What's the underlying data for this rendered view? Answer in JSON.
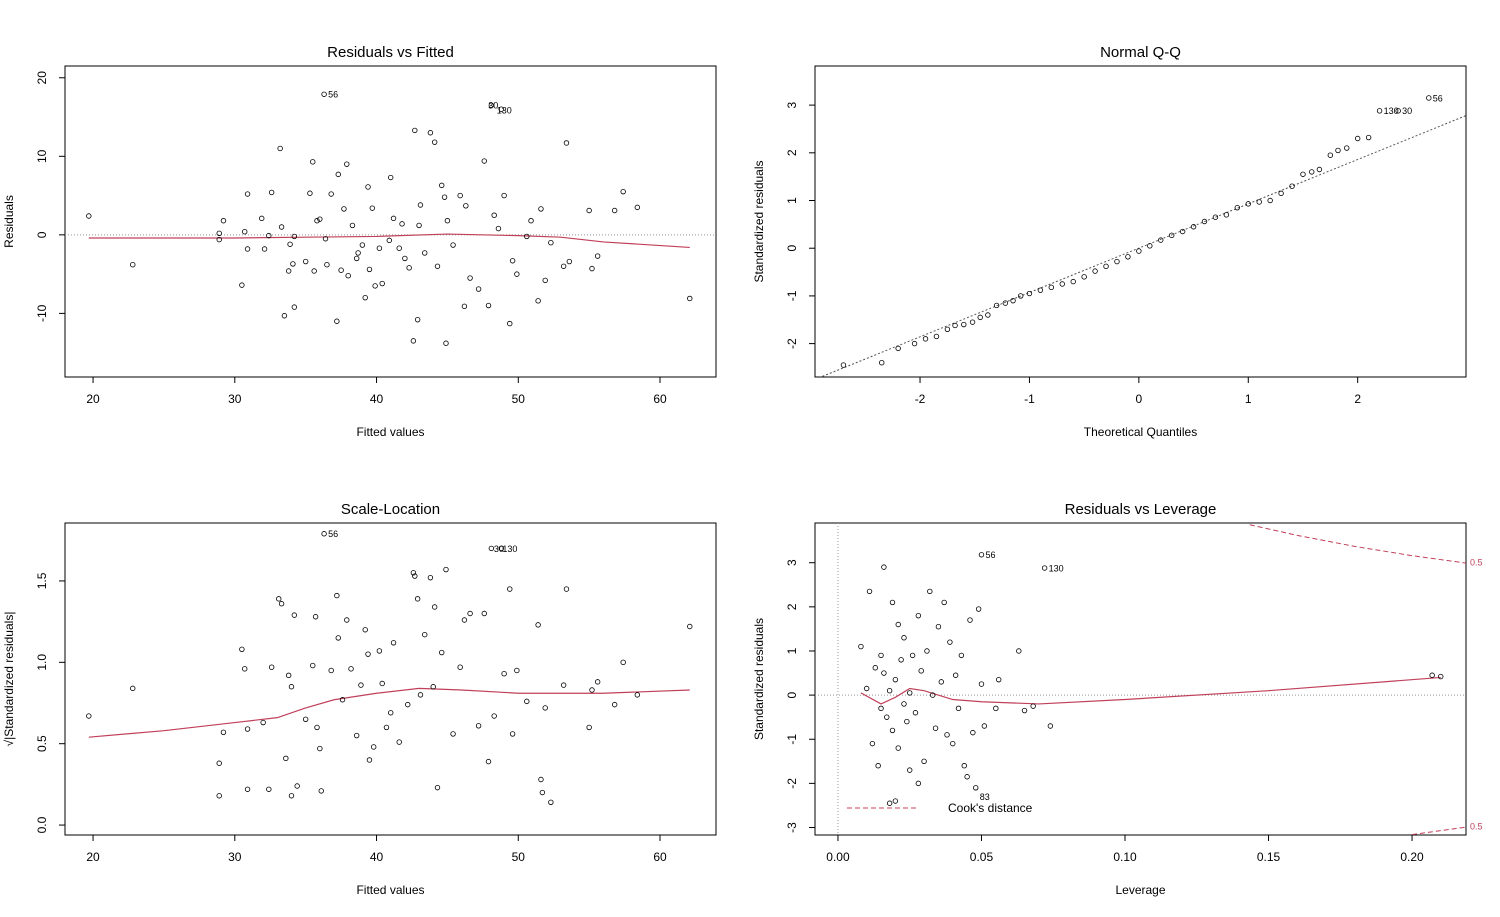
{
  "chart_data": [
    {
      "type": "scatter",
      "title": "Residuals vs Fitted",
      "xlabel": "Fitted values",
      "ylabel": "Residuals",
      "xlim": [
        18.02,
        63.95
      ],
      "ylim": [
        -18.1,
        21.5
      ],
      "xticks": [
        20,
        30,
        40,
        50,
        60
      ],
      "yticks": [
        -10,
        0,
        10,
        20
      ],
      "hline": 0,
      "x": [
        19.7,
        22.8,
        28.9,
        28.9,
        29.2,
        30.5,
        30.7,
        30.9,
        30.9,
        31.9,
        32.1,
        32.4,
        32.6,
        33.2,
        33.3,
        33.5,
        33.8,
        33.9,
        34.1,
        34.2,
        34.2,
        35,
        35.3,
        35.5,
        35.6,
        35.8,
        36.0,
        36.3,
        36.4,
        36.8,
        37.2,
        37.3,
        37.5,
        37.7,
        37.9,
        38.0,
        38.3,
        38.7,
        39.0,
        39.2,
        39.4,
        39.5,
        39.7,
        39.9,
        40.2,
        40.4,
        41,
        41.2,
        41.6,
        42,
        42.3,
        42.6,
        42.7,
        42.9,
        43.1,
        43.4,
        43.8,
        44.1,
        44.3,
        44.6,
        44.9,
        45.4,
        45.9,
        46.2,
        46.6,
        47.2,
        47.6,
        47.9,
        48.1,
        48.3,
        48.8,
        49.0,
        49.4,
        49.6,
        49.9,
        50.6,
        50.9,
        51.4,
        51.6,
        51.9,
        52.3,
        53.2,
        53.4,
        53.6,
        55,
        55.2,
        55.6,
        56.8,
        57.4,
        58.4,
        62.1,
        43,
        40.9,
        46.3,
        44.8,
        38.6,
        48.6,
        45,
        36.5,
        41.8
      ],
      "y": [
        2.4,
        -3.8,
        0.2,
        -0.6,
        1.8,
        -6.4,
        0.4,
        5.2,
        -1.8,
        2.1,
        -1.8,
        -0.1,
        5.4,
        11,
        1,
        -10.3,
        -4.6,
        -1.2,
        -3.7,
        -9.2,
        -0.2,
        -3.4,
        5.3,
        9.3,
        -4.6,
        1.8,
        2,
        17.9,
        -0.5,
        5.2,
        -11,
        7.7,
        -4.5,
        3.3,
        9,
        -5.2,
        1.2,
        -2.3,
        -1.3,
        -8,
        6.1,
        -4.4,
        3.4,
        -6.5,
        -1.7,
        -6.2,
        7.3,
        2.1,
        -1.7,
        -3,
        -4.2,
        -13.5,
        13.3,
        -10.8,
        3.8,
        -2.3,
        13,
        11.8,
        -4,
        6.3,
        -13.8,
        -1.3,
        5,
        -9.1,
        -5.5,
        -6.9,
        9.4,
        -9,
        16.5,
        2.5,
        16,
        5,
        -11.3,
        -3.3,
        -5,
        -0.2,
        1.8,
        -8.4,
        3.3,
        -5.8,
        -1,
        -4,
        11.7,
        -3.4,
        3.1,
        -4.3,
        -2.7,
        3.1,
        5.5,
        3.5,
        -8.1,
        1.2,
        -0.7,
        3.7,
        4.8,
        -3,
        0.8,
        1.8,
        -3.8,
        1.4
      ],
      "smooth": {
        "color": "#c0405a",
        "x": [
          19.7,
          30,
          35,
          40,
          45,
          50,
          53,
          56,
          62.1
        ],
        "y": [
          -0.4,
          -0.4,
          -0.3,
          -0.2,
          0.1,
          -0.1,
          -0.3,
          -0.9,
          -1.6
        ]
      },
      "annotations": [
        {
          "label": "56",
          "x": 36.3,
          "y": 17.9
        },
        {
          "label": "30",
          "x": 47.6,
          "y": 16.5
        },
        {
          "label": "130",
          "x": 48.2,
          "y": 15.9
        }
      ]
    },
    {
      "type": "scatter",
      "title": "Normal Q-Q",
      "xlabel": "Theoretical Quantiles",
      "ylabel": "Standardized residuals",
      "xlim": [
        -2.96,
        2.99
      ],
      "ylim": [
        -2.7,
        3.82
      ],
      "xticks": [
        -2,
        -1,
        0,
        1,
        2
      ],
      "yticks": [
        -2,
        -1,
        0,
        1,
        2,
        3
      ],
      "x": [
        -2.7,
        -2.35,
        -2.2,
        -2.05,
        -1.95,
        -1.85,
        -1.75,
        -1.68,
        -1.6,
        -1.52,
        -1.45,
        -1.38,
        -1.3,
        -1.22,
        -1.15,
        -1.08,
        -1.0,
        -0.9,
        -0.8,
        -0.7,
        -0.6,
        -0.5,
        -0.4,
        -0.3,
        -0.2,
        -0.1,
        0,
        0.1,
        0.2,
        0.3,
        0.4,
        0.5,
        0.6,
        0.7,
        0.8,
        0.9,
        1.0,
        1.1,
        1.2,
        1.3,
        1.4,
        1.5,
        1.58,
        1.65,
        1.75,
        1.82,
        1.9,
        2.0,
        2.1,
        2.2,
        2.37,
        2.65
      ],
      "y": [
        -2.45,
        -2.4,
        -2.1,
        -2.0,
        -1.9,
        -1.85,
        -1.7,
        -1.62,
        -1.6,
        -1.55,
        -1.45,
        -1.4,
        -1.2,
        -1.15,
        -1.1,
        -1.0,
        -0.95,
        -0.88,
        -0.82,
        -0.75,
        -0.7,
        -0.6,
        -0.48,
        -0.38,
        -0.28,
        -0.18,
        -0.06,
        0.05,
        0.17,
        0.27,
        0.35,
        0.45,
        0.56,
        0.65,
        0.7,
        0.85,
        0.93,
        0.97,
        1.0,
        1.15,
        1.3,
        1.55,
        1.6,
        1.65,
        1.95,
        2.05,
        2.1,
        2.3,
        2.32,
        2.88,
        2.88,
        3.15
      ],
      "reference_line": {
        "x": [
          -2.96,
          2.99
        ],
        "y": [
          -2.75,
          2.78
        ]
      },
      "annotations": [
        {
          "label": "56",
          "x": 2.65,
          "y": 3.15
        },
        {
          "label": "130",
          "x": 2.2,
          "y": 2.88
        },
        {
          "label": "30",
          "x": 2.37,
          "y": 2.88
        }
      ]
    },
    {
      "type": "scatter",
      "title": "Scale-Location",
      "xlabel": "Fitted values",
      "ylabel": "√|Standardized residuals|",
      "xlim": [
        18.02,
        63.95
      ],
      "ylim": [
        -0.061,
        1.856
      ],
      "xticks": [
        20,
        30,
        40,
        50,
        60
      ],
      "yticks": [
        {
          "value": 0,
          "label": "0.0"
        },
        0.5,
        {
          "value": 1,
          "label": "1.0"
        },
        1.5
      ],
      "x": [
        19.7,
        22.8,
        28.9,
        28.9,
        29.2,
        30.5,
        30.7,
        30.9,
        30.9,
        32,
        32.4,
        32.6,
        33.1,
        33.3,
        33.6,
        33.8,
        34,
        34,
        34.2,
        34.4,
        35,
        35.5,
        35.7,
        35.8,
        36,
        36.1,
        36.3,
        36.8,
        37.2,
        37.3,
        37.6,
        37.9,
        38.2,
        38.6,
        38.9,
        39.2,
        39.4,
        39.5,
        39.8,
        40.2,
        40.4,
        41,
        41.2,
        41.6,
        42.2,
        42.6,
        42.7,
        42.9,
        43.1,
        43.4,
        43.8,
        44.1,
        44.3,
        44.6,
        44.9,
        45.4,
        45.9,
        46.2,
        46.6,
        47.2,
        47.6,
        47.9,
        48.1,
        48.3,
        48.8,
        49.0,
        49.4,
        49.6,
        49.9,
        50.6,
        51.4,
        51.6,
        51.9,
        52.3,
        53.2,
        53.4,
        55,
        55.2,
        55.6,
        56.8,
        57.4,
        58.4,
        62.1,
        51.7,
        44,
        40.7
      ],
      "y": [
        0.67,
        0.84,
        0.18,
        0.38,
        0.57,
        1.08,
        0.96,
        0.22,
        0.59,
        0.63,
        0.22,
        0.97,
        1.39,
        1.36,
        0.41,
        0.92,
        0.18,
        0.85,
        1.29,
        0.24,
        0.65,
        0.98,
        1.28,
        0.6,
        0.47,
        0.21,
        1.79,
        0.95,
        1.41,
        1.15,
        0.77,
        1.26,
        0.96,
        0.55,
        0.86,
        1.2,
        1.05,
        0.4,
        0.48,
        1.07,
        0.87,
        0.69,
        1.12,
        0.51,
        0.74,
        1.55,
        1.53,
        1.39,
        0.8,
        1.17,
        1.52,
        1.34,
        0.23,
        1.06,
        1.57,
        0.56,
        0.97,
        1.26,
        1.3,
        0.61,
        1.3,
        0.39,
        1.7,
        0.67,
        1.7,
        0.93,
        1.45,
        0.56,
        0.95,
        0.76,
        1.23,
        0.28,
        0.72,
        0.14,
        0.86,
        1.45,
        0.6,
        0.83,
        0.88,
        0.74,
        1.0,
        0.8,
        1.22,
        0.2,
        0.85,
        0.6
      ],
      "smooth": {
        "color": "#c0405a",
        "x": [
          19.7,
          25,
          30,
          33,
          35,
          37,
          40,
          43,
          46,
          50,
          53,
          56,
          62.1
        ],
        "y": [
          0.54,
          0.58,
          0.63,
          0.66,
          0.72,
          0.77,
          0.81,
          0.84,
          0.83,
          0.81,
          0.81,
          0.81,
          0.83
        ]
      },
      "annotations": [
        {
          "label": "56",
          "x": 36.3,
          "y": 1.79
        },
        {
          "label": "30",
          "x": 48.0,
          "y": 1.7
        },
        {
          "label": "130",
          "x": 48.6,
          "y": 1.7
        }
      ]
    },
    {
      "type": "scatter",
      "title": "Residuals vs Leverage",
      "xlabel": "Leverage",
      "ylabel": "Standardized residuals",
      "xlim": [
        -0.008,
        0.2188
      ],
      "ylim": [
        -3.17,
        3.9
      ],
      "xticks": [
        {
          "value": 0,
          "label": "0.00"
        },
        0.05,
        {
          "value": 0.1,
          "label": "0.10"
        },
        0.15,
        {
          "value": 0.2,
          "label": "0.20"
        }
      ],
      "yticks": [
        -3,
        -2,
        -1,
        0,
        1,
        2,
        3
      ],
      "hline": 0,
      "vline": 0,
      "x": [
        0.008,
        0.01,
        0.011,
        0.012,
        0.013,
        0.014,
        0.015,
        0.015,
        0.016,
        0.016,
        0.017,
        0.018,
        0.018,
        0.019,
        0.019,
        0.02,
        0.02,
        0.021,
        0.021,
        0.022,
        0.023,
        0.023,
        0.024,
        0.025,
        0.025,
        0.026,
        0.027,
        0.028,
        0.028,
        0.029,
        0.03,
        0.031,
        0.032,
        0.033,
        0.034,
        0.035,
        0.036,
        0.037,
        0.038,
        0.039,
        0.04,
        0.041,
        0.042,
        0.043,
        0.044,
        0.045,
        0.046,
        0.047,
        0.048,
        0.049,
        0.05,
        0.05,
        0.051,
        0.055,
        0.056,
        0.063,
        0.065,
        0.068,
        0.072,
        0.074,
        0.207,
        0.21
      ],
      "y": [
        1.1,
        0.15,
        2.35,
        -1.1,
        0.62,
        -1.6,
        0.9,
        -0.3,
        2.9,
        0.5,
        -0.5,
        -2.45,
        0.1,
        2.1,
        -0.8,
        -2.4,
        0.35,
        1.6,
        -1.2,
        0.8,
        -0.2,
        1.3,
        -0.6,
        0.05,
        -1.7,
        0.9,
        -0.4,
        1.8,
        -2.0,
        0.55,
        -1.5,
        1.0,
        2.35,
        0.0,
        -0.75,
        1.55,
        0.3,
        2.1,
        -0.9,
        1.2,
        -1.1,
        0.45,
        -0.3,
        0.9,
        -1.6,
        -1.85,
        1.7,
        -0.85,
        -2.1,
        1.95,
        0.25,
        3.18,
        -0.7,
        -0.3,
        0.35,
        1.0,
        -0.35,
        -0.25,
        2.88,
        -0.7,
        0.45,
        0.42
      ],
      "smooth": {
        "color": "#c0405a",
        "x": [
          0.008,
          0.015,
          0.02,
          0.025,
          0.03,
          0.04,
          0.05,
          0.07,
          0.1,
          0.15,
          0.21
        ],
        "y": [
          0.05,
          -0.2,
          -0.05,
          0.15,
          0.1,
          -0.1,
          -0.15,
          -0.2,
          -0.1,
          0.1,
          0.4
        ]
      },
      "contours": {
        "color": "#c0405a",
        "lines": [
          {
            "label": "0.5",
            "x": [
              0.1435,
              0.16,
              0.18,
              0.2,
              0.219
            ],
            "y": [
              3.86,
              3.62,
              3.37,
              3.16,
              2.99
            ]
          },
          {
            "label": "0.5",
            "x": [
              0.2,
              0.219
            ],
            "y": [
              -3.16,
              -2.99
            ]
          }
        ]
      },
      "legend": "Cook's distance",
      "annotations": [
        {
          "label": "56",
          "x": 0.05,
          "y": 3.18
        },
        {
          "label": "130",
          "x": 0.072,
          "y": 2.88
        },
        {
          "label": "83",
          "x": 0.048,
          "y": -2.1
        }
      ]
    }
  ]
}
